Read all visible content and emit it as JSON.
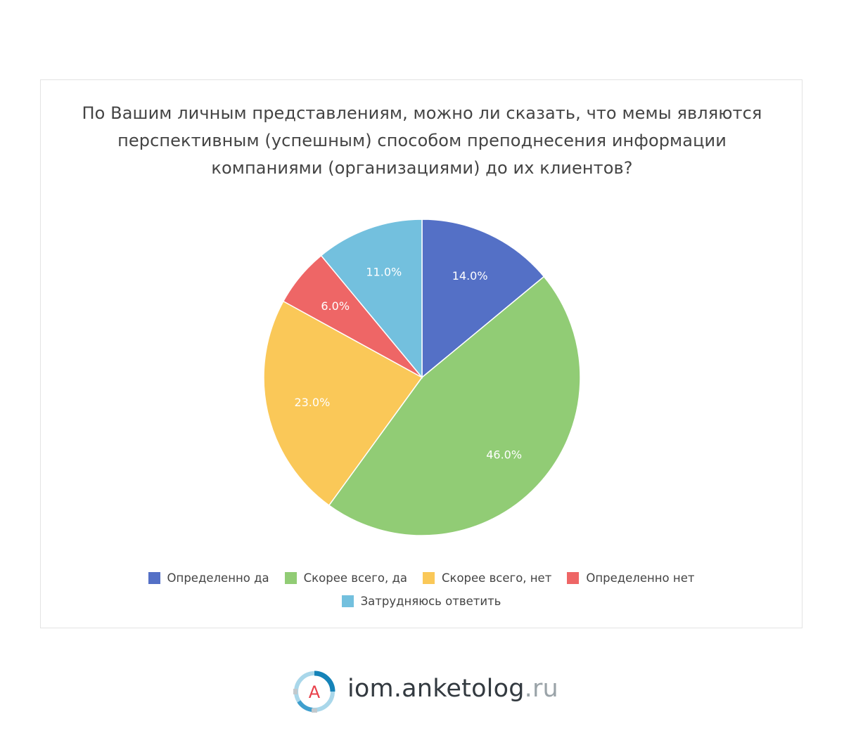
{
  "chart_data": {
    "type": "pie",
    "title_lines": [
      "По Вашим личным представлениям, можно ли сказать, что мемы являются",
      "перспективным (успешным) способом преподнесения информации",
      "компаниями (организациями) до их клиентов?"
    ],
    "slices": [
      {
        "label": "Определенно да",
        "value": 14.0,
        "display": "14.0%",
        "color": "#5470c6"
      },
      {
        "label": "Скорее всего, да",
        "value": 46.0,
        "display": "46.0%",
        "color": "#91cc75"
      },
      {
        "label": "Скорее всего, нет",
        "value": 23.0,
        "display": "23.0%",
        "color": "#fac858"
      },
      {
        "label": "Определенно нет",
        "value": 6.0,
        "display": "6.0%",
        "color": "#ee6666"
      },
      {
        "label": "Затрудняюсь ответить",
        "value": 11.0,
        "display": "11.0%",
        "color": "#73c0de"
      }
    ],
    "legend_placement": "bottom"
  },
  "footer": {
    "logo_letter": "A",
    "site_main": "iom.anketolog",
    "site_tld": ".ru"
  }
}
